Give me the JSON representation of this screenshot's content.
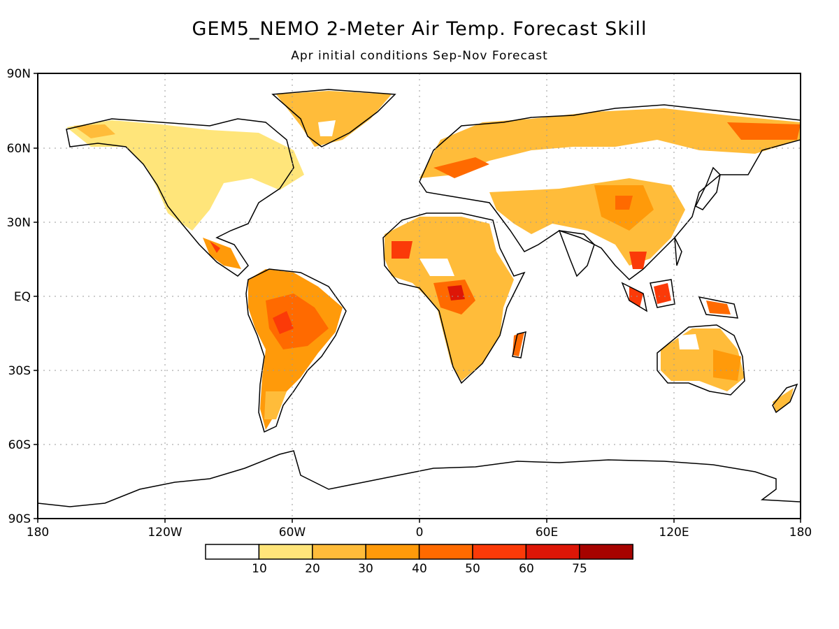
{
  "title": "GEM5_NEMO 2-Meter Air Temp. Forecast Skill",
  "subtitle": "Apr initial conditions   Sep-Nov Forecast",
  "map": {
    "lat_labels": [
      "90N",
      "60N",
      "30N",
      "EQ",
      "30S",
      "60S",
      "90S"
    ],
    "lon_labels": [
      "180",
      "120W",
      "60W",
      "0",
      "60E",
      "120E",
      "180"
    ],
    "gridlines": true
  },
  "legend": {
    "colors": [
      "#ffffff",
      "#ffe57a",
      "#ffbc3a",
      "#ff9a0a",
      "#ff6a00",
      "#fb3a08",
      "#dd1607",
      "#a60300"
    ],
    "tick_labels": [
      "10",
      "20",
      "30",
      "40",
      "50",
      "60",
      "75"
    ]
  }
}
